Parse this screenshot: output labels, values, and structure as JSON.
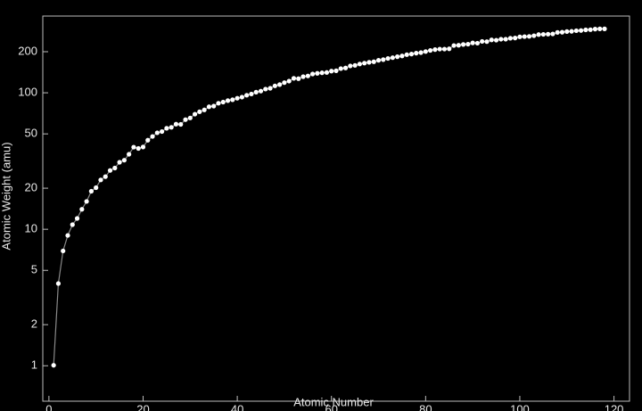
{
  "chart_data": {
    "type": "line",
    "x_label": "Atomic Number",
    "y_label": "Atomic Weight (amu)",
    "x": [
      1,
      2,
      3,
      4,
      5,
      6,
      7,
      8,
      9,
      10,
      11,
      12,
      13,
      14,
      15,
      16,
      17,
      18,
      19,
      20,
      21,
      22,
      23,
      24,
      25,
      26,
      27,
      28,
      29,
      30,
      31,
      32,
      33,
      34,
      35,
      36,
      37,
      38,
      39,
      40,
      41,
      42,
      43,
      44,
      45,
      46,
      47,
      48,
      49,
      50,
      51,
      52,
      53,
      54,
      55,
      56,
      57,
      58,
      59,
      60,
      61,
      62,
      63,
      64,
      65,
      66,
      67,
      68,
      69,
      70,
      71,
      72,
      73,
      74,
      75,
      76,
      77,
      78,
      79,
      80,
      81,
      82,
      83,
      84,
      85,
      86,
      87,
      88,
      89,
      90,
      91,
      92,
      93,
      94,
      95,
      96,
      97,
      98,
      99,
      100,
      101,
      102,
      103,
      104,
      105,
      106,
      107,
      108,
      109,
      110,
      111,
      112,
      113,
      114,
      115,
      116,
      117,
      118
    ],
    "values": [
      1.008,
      4.003,
      6.94,
      9.012,
      10.81,
      12.01,
      14.01,
      16,
      19,
      20.18,
      22.99,
      24.31,
      26.98,
      28.09,
      30.97,
      32.06,
      35.45,
      39.95,
      39.1,
      40.08,
      44.96,
      47.87,
      50.94,
      52,
      54.94,
      55.85,
      58.93,
      58.69,
      63.55,
      65.38,
      69.72,
      72.63,
      74.92,
      78.97,
      79.9,
      83.8,
      85.47,
      87.62,
      88.91,
      91.22,
      92.91,
      95.95,
      98,
      101.1,
      102.9,
      106.4,
      107.9,
      112.4,
      114.8,
      118.7,
      121.8,
      127.6,
      126.9,
      131.3,
      132.9,
      137.3,
      138.9,
      140.1,
      140.9,
      144.2,
      145,
      150.4,
      152,
      157.3,
      158.9,
      162.5,
      164.9,
      167.3,
      168.9,
      173,
      175,
      178.5,
      180.9,
      183.8,
      186.2,
      190.2,
      192.2,
      195.1,
      197,
      200.6,
      204.4,
      207.2,
      209,
      209,
      210,
      222,
      223,
      226,
      227,
      232,
      231,
      238,
      237,
      244,
      243,
      247,
      247,
      251,
      252,
      257,
      258,
      259,
      262,
      267,
      268,
      269,
      270,
      277,
      278,
      281,
      282,
      285,
      286,
      289,
      290,
      293,
      294,
      294
    ],
    "point_color": "#ffffff",
    "line_color": "#8a8a8a",
    "xlim": [
      -1.3,
      123.3
    ],
    "xticks": [
      0,
      20,
      40,
      60,
      80,
      100,
      120
    ],
    "ylim": [
      0.55,
      365
    ],
    "yticks": [
      1,
      2,
      5,
      10,
      20,
      50,
      100,
      200
    ],
    "log_y": true
  }
}
